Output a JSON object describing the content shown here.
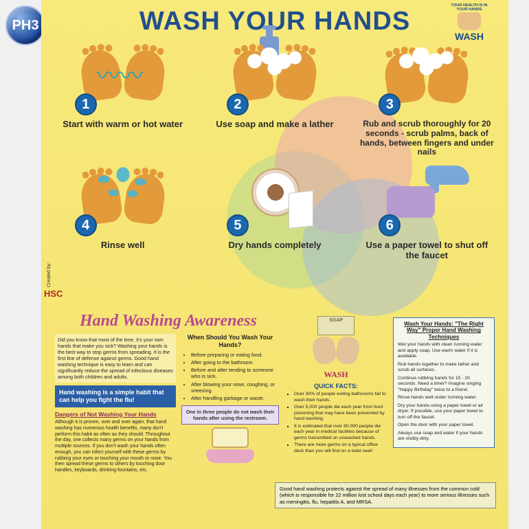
{
  "badge": "PH3",
  "title": "WASH YOUR HANDS",
  "logo": {
    "arc": "YOUR HEALTH IS IN YOUR HANDS",
    "wash": "WASH"
  },
  "colors": {
    "poster_bg_top": "#f7e97a",
    "poster_bg_bottom": "#f5e370",
    "title_color": "#204f8e",
    "number_bg": "#1b67b0",
    "hand_color": "#e39a3a",
    "water_color": "#4bb4d0",
    "soap_color": "#7a9ad0",
    "bluebox_bg": "#2b5fa5",
    "awareness_color": "#b94a8f",
    "circle_green": "#a3d49a",
    "circle_pink": "#e99abf",
    "circle_blue": "#9ab7e3"
  },
  "steps": [
    {
      "n": "1",
      "caption": "Start with warm or hot water"
    },
    {
      "n": "2",
      "caption": "Use soap and make a lather"
    },
    {
      "n": "3",
      "caption": "Rub and scrub thoroughly for 20 seconds - scrub palms, back of hands, between fingers and under nails"
    },
    {
      "n": "4",
      "caption": "Rinse well"
    },
    {
      "n": "5",
      "caption": "Dry hands completely"
    },
    {
      "n": "6",
      "caption": "Use a paper towel to shut off the faucet"
    }
  ],
  "created_by": "Created by:",
  "hsc": "HSC",
  "awareness_title": "Hand Washing Awareness",
  "intro": "Did you know that most of the time, it's your own hands that make you sick? Washing your hands is the best way to stop germs from spreading. It is the first line of defense against germs. Good hand washing technique is easy to learn and can significantly reduce the spread of infectious diseases among both children and adults.",
  "bluebox": "Hand washing is a simple habit that can help you fight the flu!",
  "dangers_title": "Dangers of Not Washing Your Hands",
  "dangers_body": "Although it is proven, over and over again, that hand washing has numerous health benefits, many don't perform this habit as often as they should. Throughout the day, one collects many germs on your hands from multiple sources. If you don't wash your hands often enough, you can infect yourself with these germs by rubbing your eyes or touching your mouth or nose. You then spread these germs to others by touching door handles, keyboards, drinking fountains, etc.",
  "when_title": "When Should You Wash Your Hands?",
  "when_items": [
    "Before preparing or eating food.",
    "After going to the bathroom.",
    "Before and after tending to someone who is sick.",
    "After blowing your nose, coughing, or sneezing.",
    "After handling garbage or waste."
  ],
  "statbox": "One in three people do not wash their hands after using the restroom.",
  "soapbar_label": "SOAP",
  "wash_label": "WASH",
  "quickfacts_title": "QUICK FACTS:",
  "quickfacts": [
    "Over 30% of people exiting bathrooms fail to wash their hands.",
    "Over 5,000 people die each year from food poisoning that may have been prevented by hand washing.",
    "It is estimated that over 80,000 people die each year in medical facilities because of germs transmitted on unwashed hands.",
    "There are more germs on a typical office desk than you will find on a toilet seat!"
  ],
  "rightway_header": "Wash Your Hands: \"The Right Way\" Proper Hand Washing Techniques",
  "rightway_items": [
    "Wet your hands with clean running water and apply soap. Use warm water if it is available.",
    "Rub hands together to make lather and scrub all surfaces.",
    "Continue rubbing hands for 15 - 20 seconds. Need a timer? Imagine singing \"Happy Birthday\" twice to a friend.",
    "Rinse hands well under running water.",
    "Dry your hands using a paper towel or air dryer. If possible, use your paper towel to turn off the faucet.",
    "Open the door with your paper towel.",
    "Always use soap and water if your hands are visibly dirty."
  ],
  "footer": "Good hand washing protects against the spread of many illnesses from the common cold (which is responsible for 22 million lost school days each year) to more serious illnesses such as meningitis, flu, hepatitis A, and MRSA."
}
